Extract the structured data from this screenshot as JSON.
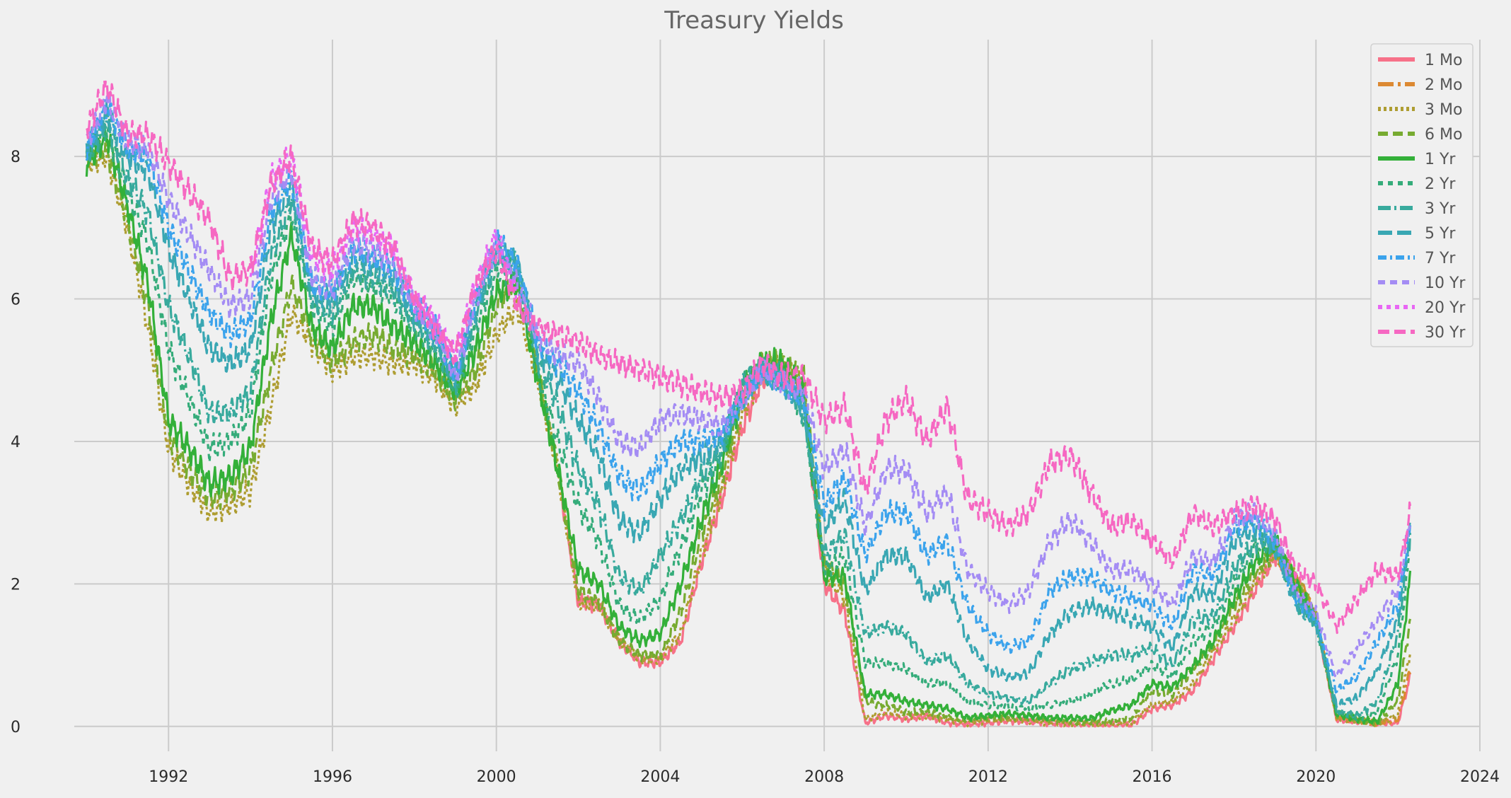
{
  "chart_data": {
    "type": "line",
    "title": "Treasury Yields",
    "xlabel": "",
    "ylabel": "",
    "xlim": [
      1989.7,
      2024.0
    ],
    "ylim": [
      -0.35,
      9.6
    ],
    "x_ticks": [
      1992,
      1996,
      2000,
      2004,
      2008,
      2012,
      2016,
      2020,
      2024
    ],
    "x_tick_labels": [
      "1992",
      "1996",
      "2000",
      "2004",
      "2008",
      "2012",
      "2016",
      "2020",
      "2024"
    ],
    "y_ticks": [
      0,
      2,
      4,
      6,
      8
    ],
    "y_tick_labels": [
      "0",
      "2",
      "4",
      "6",
      "8"
    ],
    "grid": true,
    "legend_position": "top-right",
    "x": [
      1990.0,
      1990.5,
      1991.0,
      1991.5,
      1992.0,
      1992.5,
      1993.0,
      1993.5,
      1994.0,
      1994.5,
      1995.0,
      1995.5,
      1996.0,
      1996.5,
      1997.0,
      1997.5,
      1998.0,
      1998.5,
      1999.0,
      1999.5,
      2000.0,
      2000.5,
      2001.0,
      2001.5,
      2002.0,
      2002.5,
      2003.0,
      2003.5,
      2004.0,
      2004.5,
      2005.0,
      2005.5,
      2006.0,
      2006.5,
      2007.0,
      2007.5,
      2008.0,
      2008.5,
      2009.0,
      2009.5,
      2010.0,
      2010.5,
      2011.0,
      2011.5,
      2012.0,
      2012.5,
      2013.0,
      2013.5,
      2014.0,
      2014.5,
      2015.0,
      2015.5,
      2016.0,
      2016.5,
      2017.0,
      2017.5,
      2018.0,
      2018.5,
      2019.0,
      2019.5,
      2020.0,
      2020.5,
      2021.0,
      2021.5,
      2022.0,
      2022.3
    ],
    "series": [
      {
        "name": "1 Mo",
        "color": "#f77189",
        "dash": "",
        "start": 2001.6,
        "values": [
          null,
          null,
          null,
          null,
          null,
          null,
          null,
          null,
          null,
          null,
          null,
          null,
          null,
          null,
          null,
          null,
          null,
          null,
          null,
          null,
          null,
          null,
          null,
          3.6,
          1.75,
          1.7,
          1.2,
          0.9,
          0.9,
          1.2,
          2.3,
          3.2,
          4.2,
          4.9,
          5.0,
          4.6,
          2.0,
          1.6,
          0.05,
          0.15,
          0.1,
          0.15,
          0.05,
          0.03,
          0.05,
          0.08,
          0.07,
          0.05,
          0.03,
          0.03,
          0.02,
          0.02,
          0.25,
          0.3,
          0.5,
          0.95,
          1.4,
          1.9,
          2.4,
          2.1,
          1.5,
          0.1,
          0.07,
          0.05,
          0.05,
          0.7
        ]
      },
      {
        "name": "2 Mo",
        "color": "#dc8932",
        "dash": "22 6 4 6",
        "start": 2018.8,
        "values": [
          null,
          null,
          null,
          null,
          null,
          null,
          null,
          null,
          null,
          null,
          null,
          null,
          null,
          null,
          null,
          null,
          null,
          null,
          null,
          null,
          null,
          null,
          null,
          null,
          null,
          null,
          null,
          null,
          null,
          null,
          null,
          null,
          null,
          null,
          null,
          null,
          null,
          null,
          null,
          null,
          null,
          null,
          null,
          null,
          null,
          null,
          null,
          null,
          null,
          null,
          null,
          null,
          null,
          null,
          null,
          null,
          null,
          null,
          2.45,
          2.1,
          1.55,
          0.12,
          0.08,
          0.05,
          0.1,
          0.8
        ]
      },
      {
        "name": "3 Mo",
        "color": "#ae9d31",
        "dash": "4 4",
        "start": 1990.0,
        "values": [
          7.9,
          8.0,
          7.0,
          5.6,
          3.9,
          3.4,
          3.0,
          3.1,
          3.3,
          4.5,
          5.8,
          5.4,
          5.0,
          5.2,
          5.2,
          5.1,
          5.1,
          4.9,
          4.5,
          4.8,
          5.5,
          5.9,
          4.9,
          3.6,
          1.75,
          1.7,
          1.2,
          0.95,
          0.95,
          1.3,
          2.4,
          3.3,
          4.4,
          5.0,
          5.0,
          4.8,
          2.2,
          1.8,
          0.1,
          0.2,
          0.15,
          0.15,
          0.1,
          0.05,
          0.08,
          0.1,
          0.08,
          0.05,
          0.04,
          0.04,
          0.03,
          0.05,
          0.3,
          0.35,
          0.6,
          1.05,
          1.5,
          2.0,
          2.45,
          2.1,
          1.55,
          0.13,
          0.08,
          0.05,
          0.15,
          1.05
        ]
      },
      {
        "name": "6 Mo",
        "color": "#77ab31",
        "dash": "14 7",
        "start": 1990.0,
        "values": [
          8.0,
          8.1,
          7.1,
          5.9,
          4.1,
          3.6,
          3.2,
          3.3,
          3.6,
          5.0,
          6.2,
          5.5,
          5.1,
          5.4,
          5.5,
          5.3,
          5.2,
          5.0,
          4.6,
          5.0,
          5.9,
          6.3,
          5.0,
          3.6,
          1.9,
          1.75,
          1.2,
          1.0,
          1.0,
          1.6,
          2.7,
          3.5,
          4.6,
          5.1,
          5.1,
          4.9,
          2.3,
          2.0,
          0.35,
          0.3,
          0.2,
          0.2,
          0.15,
          0.08,
          0.12,
          0.14,
          0.12,
          0.08,
          0.06,
          0.06,
          0.08,
          0.12,
          0.5,
          0.45,
          0.8,
          1.15,
          1.7,
          2.15,
          2.5,
          2.05,
          1.5,
          0.15,
          0.1,
          0.05,
          0.35,
          1.5
        ]
      },
      {
        "name": "1 Yr",
        "color": "#33b039",
        "dash": "",
        "start": 1990.0,
        "values": [
          7.9,
          8.3,
          7.3,
          6.2,
          4.3,
          3.9,
          3.4,
          3.5,
          3.9,
          5.7,
          6.9,
          5.6,
          5.3,
          5.9,
          5.9,
          5.6,
          5.4,
          5.1,
          4.7,
          5.3,
          6.1,
          6.2,
          4.9,
          3.6,
          2.2,
          2.0,
          1.4,
          1.2,
          1.3,
          2.0,
          2.9,
          3.7,
          4.7,
          5.1,
          5.1,
          4.7,
          2.1,
          2.1,
          0.45,
          0.45,
          0.35,
          0.3,
          0.25,
          0.12,
          0.15,
          0.18,
          0.15,
          0.12,
          0.12,
          0.11,
          0.22,
          0.3,
          0.6,
          0.55,
          0.85,
          1.2,
          1.8,
          2.3,
          2.6,
          2.0,
          1.5,
          0.17,
          0.1,
          0.07,
          0.6,
          2.1
        ]
      },
      {
        "name": "2 Yr",
        "color": "#35ac7a",
        "dash": "7 7",
        "start": 1990.0,
        "values": [
          8.0,
          8.4,
          7.5,
          6.8,
          5.3,
          4.6,
          3.9,
          4.0,
          4.4,
          6.3,
          7.2,
          5.9,
          5.6,
          6.3,
          6.2,
          6.0,
          5.6,
          5.3,
          4.7,
          5.6,
          6.4,
          6.4,
          5.0,
          4.0,
          3.1,
          2.6,
          1.7,
          1.5,
          1.8,
          2.5,
          3.3,
          3.8,
          4.8,
          5.0,
          4.9,
          4.4,
          2.2,
          2.4,
          0.9,
          0.9,
          0.8,
          0.6,
          0.6,
          0.35,
          0.3,
          0.28,
          0.25,
          0.3,
          0.35,
          0.45,
          0.6,
          0.65,
          0.85,
          0.7,
          1.2,
          1.4,
          2.0,
          2.5,
          2.6,
          1.8,
          1.45,
          0.2,
          0.12,
          0.2,
          1.0,
          2.5
        ]
      },
      {
        "name": "3 Yr",
        "color": "#38aa9d",
        "dash": "18 5 3 5",
        "start": 1990.0,
        "values": [
          8.0,
          8.5,
          7.7,
          7.2,
          5.9,
          5.2,
          4.4,
          4.4,
          4.7,
          6.6,
          7.4,
          6.0,
          5.8,
          6.4,
          6.3,
          6.1,
          5.7,
          5.4,
          4.8,
          5.8,
          6.6,
          6.5,
          5.2,
          4.5,
          3.6,
          3.1,
          2.1,
          1.9,
          2.4,
          2.9,
          3.5,
          3.9,
          4.8,
          5.0,
          4.9,
          4.4,
          2.4,
          2.7,
          1.3,
          1.4,
          1.3,
          0.9,
          1.0,
          0.6,
          0.45,
          0.4,
          0.35,
          0.6,
          0.8,
          0.9,
          1.0,
          1.0,
          1.1,
          0.85,
          1.5,
          1.55,
          2.2,
          2.6,
          2.6,
          1.75,
          1.45,
          0.22,
          0.15,
          0.35,
          1.3,
          2.7
        ]
      },
      {
        "name": "5 Yr",
        "color": "#39a7b3",
        "dash": "20 7",
        "start": 1990.0,
        "values": [
          8.1,
          8.6,
          8.0,
          7.8,
          6.7,
          6.0,
          5.3,
          5.1,
          5.3,
          7.0,
          7.6,
          6.1,
          6.0,
          6.6,
          6.5,
          6.3,
          5.8,
          5.5,
          4.9,
          5.9,
          6.7,
          6.5,
          5.3,
          4.9,
          4.3,
          3.8,
          2.9,
          2.7,
          3.2,
          3.6,
          3.8,
          4.0,
          4.6,
          5.0,
          4.8,
          4.5,
          2.8,
          3.2,
          1.9,
          2.4,
          2.4,
          1.8,
          2.0,
          1.2,
          0.8,
          0.7,
          0.75,
          1.3,
          1.6,
          1.7,
          1.6,
          1.5,
          1.4,
          1.1,
          1.9,
          1.85,
          2.6,
          2.8,
          2.5,
          1.75,
          1.45,
          0.3,
          0.4,
          0.8,
          1.5,
          2.8
        ]
      },
      {
        "name": "7 Yr",
        "color": "#3ba3ec",
        "dash": "12 5 3 5",
        "start": 1990.0,
        "values": [
          8.1,
          8.7,
          8.1,
          8.0,
          7.0,
          6.4,
          5.8,
          5.5,
          5.7,
          7.2,
          7.7,
          6.2,
          6.1,
          6.7,
          6.6,
          6.4,
          5.9,
          5.6,
          4.9,
          6.0,
          6.8,
          6.5,
          5.4,
          5.1,
          4.7,
          4.2,
          3.5,
          3.3,
          3.7,
          4.0,
          4.0,
          4.1,
          4.6,
          5.0,
          4.8,
          4.6,
          3.1,
          3.5,
          2.4,
          3.0,
          3.0,
          2.4,
          2.6,
          1.7,
          1.3,
          1.1,
          1.2,
          1.9,
          2.1,
          2.1,
          1.9,
          1.8,
          1.7,
          1.4,
          2.2,
          2.1,
          2.8,
          2.9,
          2.6,
          1.8,
          1.5,
          0.5,
          0.7,
          1.2,
          1.7,
          2.8
        ]
      },
      {
        "name": "10 Yr",
        "color": "#a48cf4",
        "dash": "10 7",
        "start": 1990.0,
        "values": [
          8.2,
          8.8,
          8.2,
          8.1,
          7.4,
          6.9,
          6.4,
          5.9,
          6.0,
          7.4,
          7.8,
          6.3,
          6.1,
          6.8,
          6.7,
          6.5,
          5.9,
          5.6,
          4.9,
          6.0,
          6.8,
          6.2,
          5.5,
          5.2,
          5.1,
          4.6,
          4.0,
          3.9,
          4.3,
          4.4,
          4.3,
          4.2,
          4.6,
          5.0,
          4.8,
          4.7,
          3.6,
          3.9,
          2.8,
          3.6,
          3.6,
          3.0,
          3.3,
          2.2,
          1.9,
          1.7,
          1.9,
          2.6,
          2.9,
          2.6,
          2.2,
          2.2,
          2.0,
          1.7,
          2.4,
          2.3,
          2.9,
          3.0,
          2.7,
          1.9,
          1.6,
          0.7,
          1.1,
          1.5,
          1.9,
          2.9
        ]
      },
      {
        "name": "20 Yr",
        "color": "#e866f4",
        "dash": "6 6",
        "start": 1993.75,
        "values": [
          null,
          null,
          null,
          null,
          null,
          null,
          null,
          null,
          6.3,
          7.7,
          8.0,
          6.6,
          6.4,
          7.0,
          6.9,
          6.7,
          6.0,
          5.7,
          5.2,
          6.2,
          6.9,
          6.0,
          null,
          null,
          null,
          null,
          null,
          null,
          null,
          null,
          null,
          null,
          null,
          null,
          null,
          null,
          null,
          null,
          null,
          null,
          null,
          null,
          null,
          null,
          null,
          null,
          null,
          null,
          null,
          null,
          null,
          null,
          null,
          null,
          null,
          null,
          null,
          null,
          null,
          null,
          null,
          null,
          null,
          null,
          null,
          null
        ]
      },
      {
        "name": "30 Yr",
        "color": "#f668c2",
        "dash": "16 7",
        "start": 1990.0,
        "values": [
          8.4,
          9.0,
          8.3,
          8.3,
          7.9,
          7.5,
          7.1,
          6.3,
          6.4,
          7.6,
          8.0,
          6.7,
          6.5,
          7.1,
          7.0,
          6.7,
          6.0,
          5.6,
          5.2,
          6.2,
          6.7,
          5.9,
          5.6,
          5.5,
          5.4,
          5.2,
          5.1,
          5.0,
          4.9,
          4.8,
          4.7,
          4.6,
          4.7,
          5.1,
          4.9,
          4.9,
          4.3,
          4.5,
          3.3,
          4.3,
          4.6,
          4.0,
          4.5,
          3.2,
          3.0,
          2.8,
          3.0,
          3.7,
          3.8,
          3.3,
          2.8,
          2.9,
          2.6,
          2.3,
          3.0,
          2.8,
          3.0,
          3.1,
          2.9,
          2.2,
          2.0,
          1.4,
          1.8,
          2.2,
          2.1,
          3.0
        ]
      }
    ]
  }
}
